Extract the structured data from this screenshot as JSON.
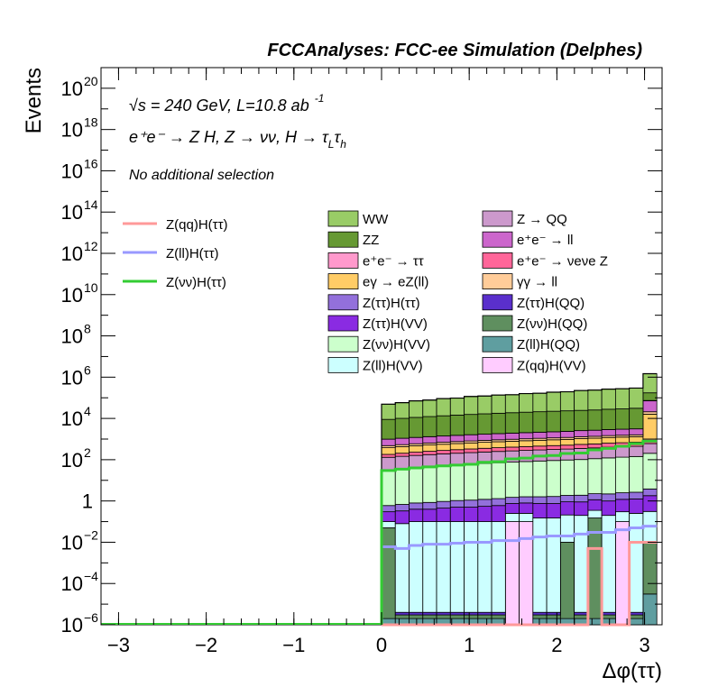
{
  "header": "FCCAnalyses: FCC-ee Simulation (Delphes)",
  "annotations": {
    "sqrt_s_symbol": "√s",
    "energy": " = 240 GeV, L=10.8 ab",
    "lumi_exp": "-1",
    "process": "e⁺e⁻ → Z H, Z → νν, H → τ",
    "process_sub1": "L",
    "process_tau": "τ",
    "process_sub2": "h",
    "selection": "No additional selection"
  },
  "chart_data": {
    "type": "bar",
    "stacked": true,
    "xlabel": "Δφ(ττ)",
    "ylabel": "Events",
    "xlim": [
      -3.2,
      3.2
    ],
    "ylim": [
      1e-06,
      1e+21
    ],
    "log_y": true,
    "x_ticks": [
      -3,
      -2,
      -1,
      0,
      1,
      2,
      3
    ],
    "x_tick_labels": [
      "−3",
      "−2",
      "−1",
      "0",
      "1",
      "2",
      "3"
    ],
    "y_tick_labels": [
      {
        "v": 1e-06,
        "base": "10",
        "exp": "−6"
      },
      {
        "v": 0.0001,
        "base": "10",
        "exp": "−4"
      },
      {
        "v": 0.01,
        "base": "10",
        "exp": "−2"
      },
      {
        "v": 1,
        "base": "1",
        "exp": ""
      },
      {
        "v": 100.0,
        "base": "10",
        "exp": "2"
      },
      {
        "v": 10000.0,
        "base": "10",
        "exp": "4"
      },
      {
        "v": 1000000.0,
        "base": "10",
        "exp": "6"
      },
      {
        "v": 100000000.0,
        "base": "10",
        "exp": "8"
      },
      {
        "v": 10000000000.0,
        "base": "10",
        "exp": "10"
      },
      {
        "v": 1000000000000.0,
        "base": "10",
        "exp": "12"
      },
      {
        "v": 100000000000000.0,
        "base": "10",
        "exp": "14"
      },
      {
        "v": 1e+16,
        "base": "10",
        "exp": "16"
      },
      {
        "v": 1e+18,
        "base": "10",
        "exp": "18"
      },
      {
        "v": 1e+20,
        "base": "10",
        "exp": "20"
      }
    ],
    "bin_edges": [
      0,
      0.157,
      0.314,
      0.471,
      0.628,
      0.785,
      0.942,
      1.099,
      1.256,
      1.413,
      1.57,
      1.727,
      1.884,
      2.041,
      2.198,
      2.355,
      2.512,
      2.669,
      2.826,
      2.983,
      3.14
    ],
    "stack_top": [
      50000,
      60000,
      75000,
      80000,
      95000,
      100000,
      120000,
      125000,
      140000,
      145000,
      165000,
      170000,
      190000,
      200000,
      230000,
      240000,
      270000,
      280000,
      300000,
      1500000
    ],
    "layers": [
      {
        "name": "Z(qq)H(VV)",
        "color": "#ffccff",
        "values": [
          1e-06,
          1e-06,
          1e-06,
          1e-06,
          1e-06,
          1e-06,
          1e-06,
          1e-06,
          1e-06,
          0.1,
          0.1,
          1e-06,
          1e-06,
          1e-06,
          1e-06,
          1e-06,
          1e-06,
          0.1,
          1e-06,
          1e-06
        ]
      },
      {
        "name": "Z(ll)H(QQ)",
        "color": "#5f9ea0",
        "values": [
          1e-06,
          1e-06,
          1e-06,
          1e-06,
          1e-06,
          1e-06,
          1e-06,
          1e-06,
          1e-06,
          1e-06,
          1e-06,
          1e-06,
          1e-06,
          1e-06,
          1e-06,
          1e-06,
          1e-06,
          1e-06,
          1e-06,
          3e-05
        ]
      },
      {
        "name": "Z(νν)H(QQ)",
        "color": "#5f8f5f",
        "values": [
          0.05,
          1e-06,
          1e-06,
          1e-06,
          1e-06,
          1e-06,
          1e-06,
          1e-06,
          1e-06,
          1e-06,
          1e-06,
          1e-06,
          1e-06,
          0.01,
          1e-06,
          0.15,
          1e-06,
          1e-06,
          1e-06,
          0.01
        ]
      },
      {
        "name": "Z(ττ)H(QQ)",
        "color": "#5a2fcc",
        "values": [
          1e-06,
          1e-06,
          1e-06,
          1e-06,
          1e-06,
          1e-06,
          1e-06,
          1e-06,
          1e-06,
          1e-06,
          1e-06,
          1e-06,
          1e-06,
          1e-06,
          1e-06,
          1e-06,
          1e-06,
          1e-06,
          1e-06,
          5e-06
        ]
      },
      {
        "name": "Z(ll)H(VV)",
        "color": "#ccffff",
        "values": [
          0.05,
          0.08,
          0.1,
          0.1,
          0.1,
          0.1,
          0.1,
          0.1,
          0.1,
          0.15,
          0.15,
          0.15,
          0.15,
          0.2,
          0.2,
          0.2,
          0.2,
          0.2,
          0.25,
          0.3
        ]
      },
      {
        "name": "Z(ττ)H(VV)",
        "color": "#8a2be2",
        "values": [
          0.2,
          0.25,
          0.3,
          0.3,
          0.35,
          0.4,
          0.4,
          0.45,
          0.5,
          0.5,
          0.55,
          0.6,
          0.6,
          0.7,
          0.7,
          0.8,
          0.8,
          0.9,
          1.0,
          1.5
        ]
      },
      {
        "name": "Z(ττ)H(ττ)",
        "color": "#9370db",
        "values": [
          0.3,
          0.35,
          0.4,
          0.45,
          0.5,
          0.55,
          0.6,
          0.65,
          0.7,
          0.75,
          0.8,
          0.85,
          0.9,
          0.95,
          1.0,
          1.1,
          1.2,
          1.3,
          1.4,
          2.0
        ]
      },
      {
        "name": "Z(νν)H(VV)",
        "color": "#ccffcc",
        "values": [
          30,
          35,
          40,
          45,
          50,
          55,
          60,
          65,
          70,
          75,
          80,
          85,
          90,
          95,
          100,
          110,
          120,
          130,
          140,
          200
        ]
      },
      {
        "name": "Z → QQ",
        "color": "#cc99cc",
        "values": [
          100,
          110,
          120,
          130,
          140,
          150,
          160,
          170,
          180,
          190,
          200,
          210,
          220,
          230,
          250,
          260,
          280,
          290,
          300,
          400
        ]
      },
      {
        "name": "e⁺e⁻ → νeνe Z",
        "color": "#ff6699",
        "values": [
          50,
          60,
          70,
          80,
          90,
          100,
          110,
          120,
          130,
          140,
          150,
          160,
          170,
          180,
          200,
          210,
          230,
          240,
          260,
          400
        ]
      },
      {
        "name": "eγ → eZ(ll)",
        "color": "#ffcc66",
        "values": [
          200,
          220,
          240,
          260,
          280,
          300,
          320,
          340,
          360,
          380,
          400,
          420,
          440,
          460,
          500,
          520,
          560,
          580,
          600,
          15000
        ]
      },
      {
        "name": "γγ → ll",
        "color": "#ffcc99",
        "values": [
          100,
          110,
          120,
          130,
          140,
          150,
          160,
          170,
          180,
          190,
          200,
          210,
          220,
          230,
          250,
          260,
          280,
          290,
          300,
          5000
        ]
      },
      {
        "name": "e⁺e⁻ → ll",
        "color": "#cc66cc",
        "values": [
          500,
          550,
          600,
          650,
          700,
          750,
          800,
          850,
          900,
          950,
          1000,
          1050,
          1100,
          1150,
          1250,
          1300,
          1400,
          1450,
          1500,
          50000
        ]
      },
      {
        "name": "e⁺e⁻ → ττ",
        "color": "#ff99cc",
        "values": [
          10,
          11,
          12,
          13,
          14,
          15,
          16,
          17,
          18,
          19,
          20,
          21,
          22,
          23,
          25,
          26,
          28,
          29,
          30,
          3000
        ]
      },
      {
        "name": "ZZ",
        "color": "#669933",
        "values": [
          8000,
          9000,
          10000,
          11000,
          12000,
          13000,
          14000,
          15000,
          16000,
          17000,
          18000,
          19000,
          20000,
          21000,
          22000,
          23000,
          25000,
          26000,
          28000,
          100000
        ]
      },
      {
        "name": "WW",
        "color": "#99cc66",
        "values": [
          40000,
          48000,
          60000,
          65000,
          78000,
          82000,
          100000,
          105000,
          118000,
          122000,
          140000,
          145000,
          165000,
          172000,
          200000,
          210000,
          235000,
          245000,
          265000,
          1300000
        ]
      }
    ],
    "stack_legend_order": [
      "WW",
      "ZZ",
      "e⁺e⁻ → ττ",
      "eγ → eZ(ll)",
      "Z(ττ)H(ττ)",
      "Z(ττ)H(VV)",
      "Z(νν)H(VV)",
      "Z(ll)H(VV)",
      "Z → QQ",
      "e⁺e⁻ → ll",
      "e⁺e⁻ → νeνe Z",
      "γγ → ll",
      "Z(ττ)H(QQ)",
      "Z(νν)H(QQ)",
      "Z(ll)H(QQ)",
      "Z(qq)H(VV)"
    ],
    "signal_lines": [
      {
        "name": "Z(qq)H(ττ)",
        "color": "#ff9999",
        "values": [
          1e-06,
          1e-06,
          1e-06,
          1e-06,
          1e-06,
          1e-06,
          1e-06,
          1e-06,
          1e-06,
          1e-06,
          1e-06,
          1e-06,
          1e-06,
          1e-06,
          1e-06,
          0.005,
          1e-06,
          1e-06,
          0.01,
          0.01
        ]
      },
      {
        "name": "Z(ll)H(ττ)",
        "color": "#9999ff",
        "values": [
          0.006,
          0.005,
          0.007,
          0.008,
          0.008,
          0.009,
          0.01,
          0.01,
          0.012,
          0.012,
          0.015,
          0.018,
          0.02,
          0.02,
          0.025,
          0.03,
          0.03,
          0.04,
          0.05,
          0.06
        ]
      },
      {
        "name": "Z(νν)H(ττ)",
        "color": "#33cc33",
        "values": [
          30,
          35,
          40,
          45,
          50,
          55,
          60,
          75,
          80,
          110,
          120,
          150,
          160,
          200,
          210,
          300,
          350,
          450,
          600,
          800
        ]
      }
    ]
  }
}
